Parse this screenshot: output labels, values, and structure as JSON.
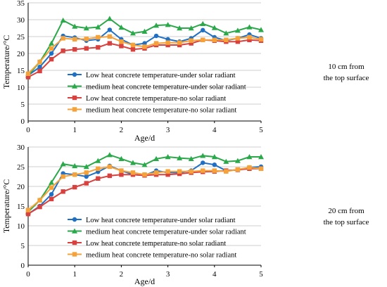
{
  "chart_data": [
    {
      "type": "line",
      "x": [
        0,
        0.25,
        0.5,
        0.75,
        1.0,
        1.25,
        1.5,
        1.75,
        2.0,
        2.25,
        2.5,
        2.75,
        3.0,
        3.25,
        3.5,
        3.75,
        4.0,
        4.25,
        4.5,
        4.75,
        5.0
      ],
      "xlabel": "Age/d",
      "ylabel": "Temperature/°C",
      "xlim": [
        0,
        5
      ],
      "ylim": [
        0,
        35
      ],
      "xticks": [
        0,
        1,
        2,
        3,
        4,
        5
      ],
      "yticks": [
        0,
        5,
        10,
        15,
        20,
        25,
        30,
        35
      ],
      "grid": "horizontal",
      "legend_position": "lower-center",
      "side_label": "10 cm from the top surface",
      "series": [
        {
          "name": "Low heat concrete temperature-under solar radiant",
          "color": "#1f6fc5",
          "marker": "circle",
          "values": [
            13.5,
            16.0,
            20.0,
            25.2,
            24.7,
            23.8,
            24.2,
            27.0,
            24.2,
            22.5,
            23.0,
            25.2,
            24.2,
            23.5,
            24.5,
            26.9,
            24.8,
            23.8,
            24.5,
            25.6,
            24.5
          ]
        },
        {
          "name": "medium heat concrete temperature-under solar radiant",
          "color": "#2aa84a",
          "marker": "triangle",
          "values": [
            13.5,
            17.5,
            23.0,
            29.8,
            28.0,
            27.5,
            27.8,
            30.3,
            27.7,
            26.0,
            26.5,
            28.3,
            28.5,
            27.5,
            27.5,
            28.8,
            27.6,
            26.0,
            26.8,
            27.8,
            27.0
          ]
        },
        {
          "name": "Low heat concrete temperature-no solar radiant",
          "color": "#d9413f",
          "marker": "square",
          "values": [
            13.0,
            14.8,
            18.3,
            20.8,
            21.2,
            21.5,
            21.8,
            23.0,
            22.2,
            21.2,
            21.5,
            22.5,
            22.5,
            22.5,
            23.0,
            24.0,
            23.8,
            23.5,
            23.5,
            24.0,
            23.8
          ]
        },
        {
          "name": "medium heat concrete temperature-no solar radiant",
          "color": "#f5a23a",
          "marker": "square",
          "values": [
            14.0,
            17.5,
            21.5,
            24.5,
            24.2,
            24.3,
            24.8,
            25.0,
            23.5,
            22.5,
            22.0,
            23.0,
            23.2,
            23.2,
            23.8,
            24.0,
            24.0,
            24.0,
            24.5,
            24.8,
            24.2
          ]
        }
      ]
    },
    {
      "type": "line",
      "x": [
        0,
        0.25,
        0.5,
        0.75,
        1.0,
        1.25,
        1.5,
        1.75,
        2.0,
        2.25,
        2.5,
        2.75,
        3.0,
        3.25,
        3.5,
        3.75,
        4.0,
        4.25,
        4.5,
        4.75,
        5.0
      ],
      "xlabel": "Age/d",
      "ylabel": "Temperature/°C",
      "xlim": [
        0,
        5
      ],
      "ylim": [
        0,
        30
      ],
      "xticks": [
        0,
        1,
        2,
        3,
        4,
        5
      ],
      "yticks": [
        0,
        5,
        10,
        15,
        20,
        25,
        30
      ],
      "grid": "horizontal",
      "legend_position": "lower-center",
      "side_label": "20 cm from the top surface",
      "series": [
        {
          "name": "Low heat concrete temperature-under solar radiant",
          "color": "#1f6fc5",
          "marker": "circle",
          "values": [
            13.0,
            15.0,
            18.0,
            23.3,
            23.0,
            22.5,
            23.7,
            25.2,
            24.0,
            23.0,
            22.8,
            24.0,
            23.5,
            23.5,
            24.0,
            26.0,
            25.5,
            24.0,
            24.2,
            24.8,
            25.0
          ]
        },
        {
          "name": "medium heat concrete temperature-under solar radiant",
          "color": "#2aa84a",
          "marker": "triangle",
          "values": [
            13.5,
            16.5,
            21.0,
            25.7,
            25.2,
            25.0,
            26.5,
            28.0,
            27.0,
            26.0,
            25.5,
            27.0,
            27.5,
            27.2,
            27.0,
            27.8,
            27.5,
            26.3,
            26.5,
            27.5,
            27.5
          ]
        },
        {
          "name": "Low heat concrete temperature-no solar radiant",
          "color": "#d9413f",
          "marker": "square",
          "values": [
            13.0,
            14.8,
            16.8,
            18.7,
            19.8,
            20.8,
            22.0,
            22.7,
            23.0,
            23.0,
            22.8,
            23.0,
            23.0,
            23.2,
            23.5,
            23.7,
            23.8,
            24.0,
            24.2,
            24.5,
            24.5
          ]
        },
        {
          "name": "medium heat concrete temperature-no solar radiant",
          "color": "#f5a23a",
          "marker": "square",
          "values": [
            14.0,
            16.5,
            19.7,
            22.5,
            23.0,
            23.5,
            24.5,
            25.0,
            24.0,
            23.5,
            23.0,
            23.5,
            23.8,
            23.8,
            23.8,
            24.0,
            24.0,
            23.8,
            24.3,
            24.8,
            24.5
          ]
        }
      ]
    }
  ]
}
